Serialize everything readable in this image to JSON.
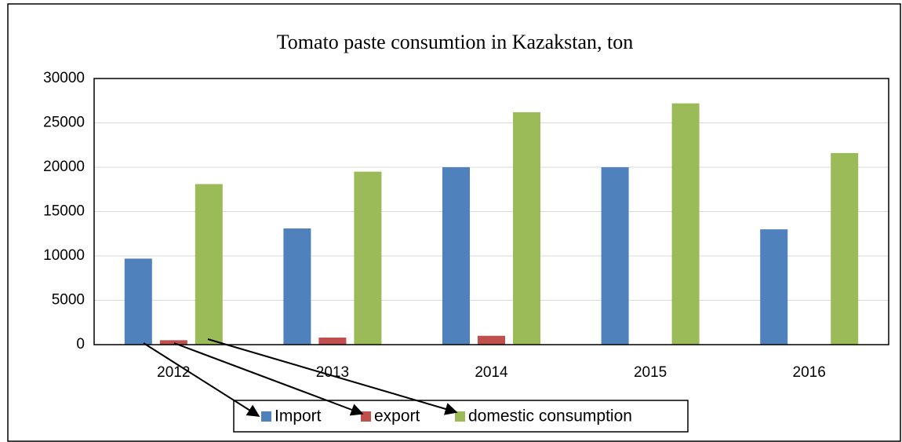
{
  "chart_data": {
    "type": "bar",
    "title": "Tomato paste consumtion in Kazakstan, ton",
    "categories": [
      "2012",
      "2013",
      "2014",
      "2015",
      "2016"
    ],
    "series": [
      {
        "name": "Import",
        "color": "#4f81bd",
        "values": [
          9700,
          13100,
          20000,
          20000,
          13000
        ]
      },
      {
        "name": "export",
        "color": "#c0504d",
        "values": [
          500,
          800,
          1000,
          0,
          0
        ]
      },
      {
        "name": "domestic consumption",
        "color": "#9bbb59",
        "values": [
          18100,
          19500,
          26200,
          27200,
          21600
        ]
      }
    ],
    "ylim": [
      0,
      30000
    ],
    "yticks": [
      0,
      5000,
      10000,
      15000,
      20000,
      25000,
      30000
    ],
    "grid": true,
    "legend": "bottom"
  }
}
